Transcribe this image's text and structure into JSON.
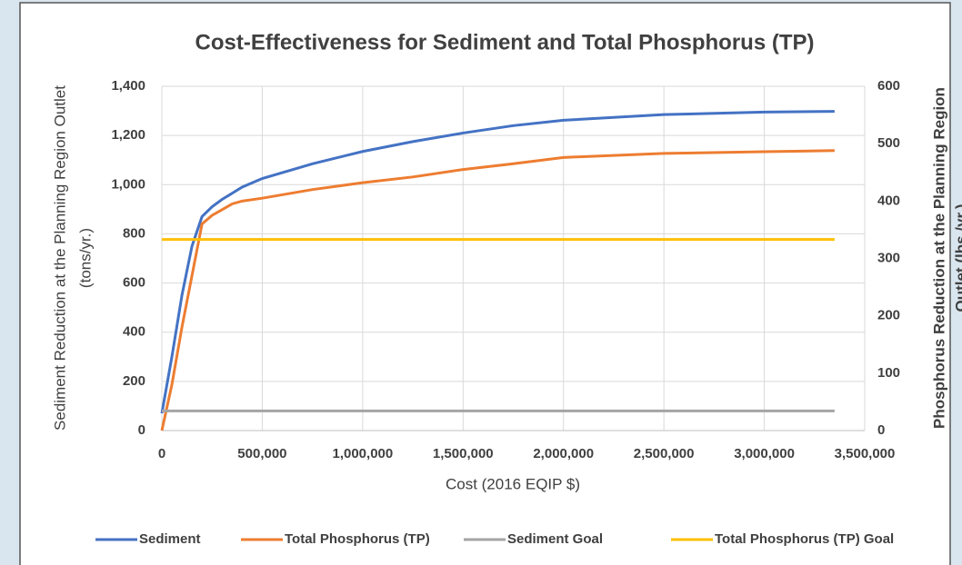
{
  "chart_data": {
    "type": "line",
    "title": "Cost-Effectiveness for Sediment and Total Phosphorus (TP)",
    "xlabel": "Cost (2016 EQIP $)",
    "ylabel": [
      "Sediment Reduction at the Planning Region Outlet",
      "(tons/yr.)"
    ],
    "y2label": [
      "Phosphorus Reduction at the Planning Region",
      "Outlet (lbs./yr.)"
    ],
    "x": [
      0,
      50000,
      100000,
      150000,
      200000,
      250000,
      300000,
      350000,
      400000,
      500000,
      750000,
      1000000,
      1250000,
      1500000,
      1750000,
      2000000,
      2500000,
      3000000,
      3350000
    ],
    "series": [
      {
        "name": "Sediment",
        "color": "#4472c4",
        "axis": "y",
        "values": [
          70,
          300,
          550,
          750,
          870,
          910,
          940,
          965,
          990,
          1025,
          1085,
          1135,
          1175,
          1210,
          1240,
          1262,
          1285,
          1295,
          1298
        ]
      },
      {
        "name": "Total Phosphorus (TP)",
        "color": "#ed7d31",
        "axis": "y2",
        "values": [
          0,
          80,
          180,
          270,
          360,
          375,
          385,
          395,
          400,
          405,
          420,
          432,
          442,
          455,
          465,
          476,
          483,
          486,
          488
        ]
      },
      {
        "name": "Sediment Goal",
        "color": "#a5a5a5",
        "axis": "y",
        "values": [
          80,
          80,
          80,
          80,
          80,
          80,
          80,
          80,
          80,
          80,
          80,
          80,
          80,
          80,
          80,
          80,
          80,
          80,
          80
        ]
      },
      {
        "name": "Total Phosphorus (TP) Goal",
        "color": "#ffc000",
        "axis": "y2",
        "values": [
          333,
          333,
          333,
          333,
          333,
          333,
          333,
          333,
          333,
          333,
          333,
          333,
          333,
          333,
          333,
          333,
          333,
          333,
          333
        ]
      }
    ],
    "xlim": [
      0,
      3500000
    ],
    "xticks": [
      0,
      {
        "value": 500000,
        "label": "500,000"
      },
      {
        "value": 1000000,
        "label": "1,000,000"
      },
      {
        "value": 1500000,
        "label": "1,500,000"
      },
      {
        "value": 2000000,
        "label": "2,000,000"
      },
      {
        "value": 2500000,
        "label": "2,500,000"
      },
      {
        "value": 3000000,
        "label": "3,000,000"
      },
      {
        "value": 3500000,
        "label": "3,500,000"
      }
    ],
    "ylim": [
      0,
      1400
    ],
    "yticks": [
      0,
      200,
      400,
      600,
      800,
      {
        "value": 1000,
        "label": "1,000"
      },
      {
        "value": 1200,
        "label": "1,200"
      },
      {
        "value": 1400,
        "label": "1,400"
      }
    ],
    "y2lim": [
      0,
      600
    ],
    "y2ticks": [
      0,
      100,
      200,
      300,
      400,
      500,
      600
    ],
    "grid": true,
    "legend": "bottom"
  }
}
